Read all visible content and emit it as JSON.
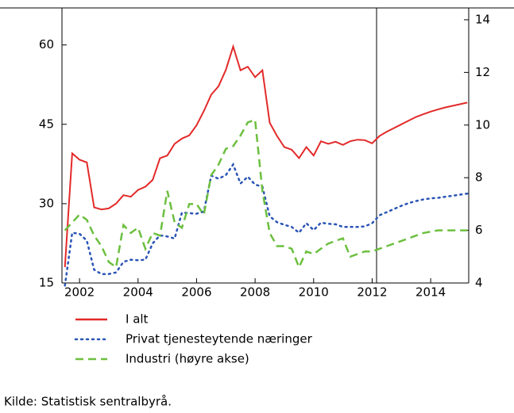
{
  "chart_data": {
    "type": "line",
    "x": [
      2001.5,
      2001.75,
      2002,
      2002.25,
      2002.5,
      2002.75,
      2003,
      2003.25,
      2003.5,
      2003.75,
      2004,
      2004.25,
      2004.5,
      2004.75,
      2005,
      2005.25,
      2005.5,
      2005.75,
      2006,
      2006.25,
      2006.5,
      2006.75,
      2007,
      2007.25,
      2007.5,
      2007.75,
      2008,
      2008.25,
      2008.5,
      2008.75,
      2009,
      2009.25,
      2009.5,
      2009.75,
      2010,
      2010.25,
      2010.5,
      2010.75,
      2011,
      2011.25,
      2011.5,
      2011.75,
      2012,
      2012.25,
      2012.5,
      2012.75,
      2013,
      2013.25,
      2013.5,
      2013.75,
      2014,
      2014.25,
      2014.5,
      2014.75,
      2015,
      2015.25
    ],
    "series": [
      {
        "name": "I alt",
        "color": "#e32a2a",
        "dash": "solid",
        "values": [
          18,
          39.5,
          38.3,
          37.8,
          29.3,
          28.9,
          29.1,
          30,
          31.6,
          31.3,
          32.6,
          33.2,
          34.5,
          38.6,
          39.1,
          41.3,
          42.3,
          42.9,
          44.8,
          47.5,
          50.6,
          52.2,
          55.3,
          59.7,
          55.2,
          55.9,
          53.9,
          55.2,
          45.3,
          42.8,
          40.7,
          40.2,
          38.6,
          40.7,
          39.1,
          41.8,
          41.3,
          41.7,
          41.1,
          41.8,
          42.1,
          42,
          41.4,
          42.8,
          43.6,
          44.3,
          45,
          45.7,
          46.4,
          46.9,
          47.4,
          47.8,
          48.2,
          48.5,
          48.8,
          49.1
        ]
      },
      {
        "name": "Privat tjenesteytende næringer",
        "color": "#2b55b5",
        "dash": "dotted",
        "values": [
          14.5,
          24.5,
          24.3,
          23,
          17.5,
          16.7,
          16.7,
          17,
          19,
          19.4,
          19.3,
          19.4,
          22.5,
          24,
          23.8,
          23.4,
          28.3,
          28.2,
          28.1,
          28.5,
          35.3,
          34.7,
          35.4,
          37.4,
          33.8,
          35.1,
          33.6,
          33.2,
          27.6,
          26.5,
          26,
          25.6,
          24.5,
          26.3,
          25,
          26.4,
          26.2,
          26.1,
          25.6,
          25.6,
          25.6,
          25.7,
          26.3,
          27.8,
          28.4,
          29,
          29.6,
          30.1,
          30.5,
          30.8,
          31,
          31.1,
          31.3,
          31.5,
          31.7,
          31.9
        ]
      },
      {
        "name": "Industri (høyre akse)",
        "color": "#6cbf3f",
        "dash": "dashed",
        "axis": "y2",
        "values": [
          6.0,
          6.3,
          6.6,
          6.4,
          5.8,
          5.4,
          4.8,
          4.6,
          6.2,
          5.9,
          6.1,
          5.3,
          5.9,
          5.8,
          7.5,
          6.3,
          6.1,
          7.0,
          7.0,
          6.6,
          8.1,
          8.5,
          9.1,
          9.2,
          9.6,
          10.1,
          10.2,
          7.5,
          5.9,
          5.4,
          5.4,
          5.3,
          4.6,
          5.2,
          5.1,
          5.3,
          5.5,
          5.6,
          5.7,
          5.0,
          5.1,
          5.2,
          5.2,
          5.3,
          5.4,
          5.5,
          5.6,
          5.7,
          5.8,
          5.9,
          5.95,
          6.0,
          6.0,
          6.0,
          6.0,
          6.0
        ]
      }
    ],
    "xlim": [
      2001.4,
      2015.3
    ],
    "xticks": [
      2002,
      2004,
      2006,
      2008,
      2010,
      2012,
      2014
    ],
    "ylim": [
      15,
      67
    ],
    "yticks": [
      15,
      30,
      45,
      60
    ],
    "y2lim": [
      4,
      14.45
    ],
    "y2ticks": [
      4,
      6,
      8,
      10,
      12,
      14
    ],
    "source": "Kilde:  Statistisk sentralbyrå."
  }
}
